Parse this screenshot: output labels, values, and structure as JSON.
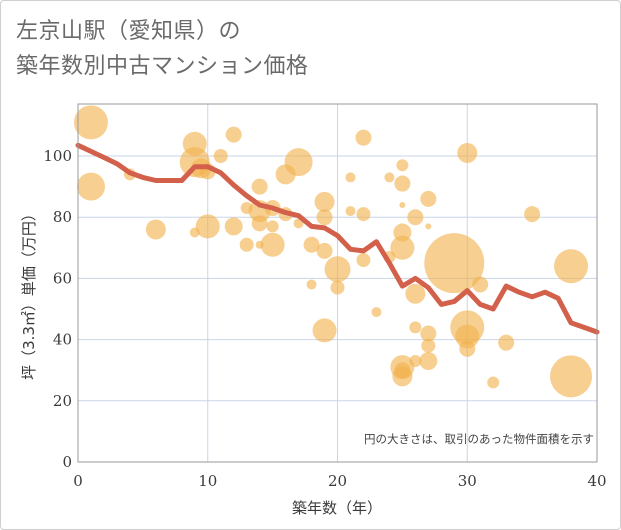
{
  "title_line1": "左京山駅（愛知県）の",
  "title_line2": "築年数別中古マンション価格",
  "note": "円の大きさは、取引のあった物件面積を示す",
  "colors": {
    "bubble": "#f2b24e",
    "line": "#d3604a",
    "grid": "#c8d6e8",
    "plot_border": "#9a9a9a"
  },
  "chart_data": {
    "type": "scatter",
    "xlabel": "築年数（年）",
    "ylabel": "坪（3.3㎡）単価（万円）",
    "xlim": [
      0,
      40
    ],
    "ylim": [
      0,
      117
    ],
    "xticks": [
      "0",
      "10",
      "20",
      "30",
      "40"
    ],
    "yticks": [
      "0",
      "20",
      "40",
      "60",
      "80",
      "100"
    ],
    "grid": true,
    "bubbles": [
      {
        "x": 1,
        "y": 111,
        "s": 17
      },
      {
        "x": 1,
        "y": 90,
        "s": 14
      },
      {
        "x": 4,
        "y": 94,
        "s": 6
      },
      {
        "x": 6,
        "y": 76,
        "s": 10
      },
      {
        "x": 9,
        "y": 104,
        "s": 12
      },
      {
        "x": 9,
        "y": 98,
        "s": 15
      },
      {
        "x": 9.5,
        "y": 96,
        "s": 10
      },
      {
        "x": 10,
        "y": 95,
        "s": 8
      },
      {
        "x": 10,
        "y": 77,
        "s": 12
      },
      {
        "x": 11,
        "y": 100,
        "s": 7
      },
      {
        "x": 9,
        "y": 75,
        "s": 5
      },
      {
        "x": 12,
        "y": 107,
        "s": 8
      },
      {
        "x": 12,
        "y": 77,
        "s": 9
      },
      {
        "x": 13,
        "y": 71,
        "s": 7
      },
      {
        "x": 13,
        "y": 83,
        "s": 6
      },
      {
        "x": 14,
        "y": 90,
        "s": 8
      },
      {
        "x": 14,
        "y": 82,
        "s": 11
      },
      {
        "x": 14,
        "y": 78,
        "s": 8
      },
      {
        "x": 14,
        "y": 71,
        "s": 4
      },
      {
        "x": 15,
        "y": 83,
        "s": 8
      },
      {
        "x": 15,
        "y": 77,
        "s": 6
      },
      {
        "x": 15,
        "y": 71,
        "s": 12
      },
      {
        "x": 16,
        "y": 94,
        "s": 10
      },
      {
        "x": 16,
        "y": 81,
        "s": 7
      },
      {
        "x": 17,
        "y": 98,
        "s": 14
      },
      {
        "x": 17,
        "y": 78,
        "s": 5
      },
      {
        "x": 18,
        "y": 71,
        "s": 8
      },
      {
        "x": 18,
        "y": 58,
        "s": 5
      },
      {
        "x": 19,
        "y": 85,
        "s": 10
      },
      {
        "x": 19,
        "y": 80,
        "s": 8
      },
      {
        "x": 19,
        "y": 69,
        "s": 8
      },
      {
        "x": 19,
        "y": 43,
        "s": 12
      },
      {
        "x": 20,
        "y": 63,
        "s": 13
      },
      {
        "x": 20,
        "y": 57,
        "s": 7
      },
      {
        "x": 21,
        "y": 93,
        "s": 5
      },
      {
        "x": 21,
        "y": 82,
        "s": 5
      },
      {
        "x": 22,
        "y": 106,
        "s": 8
      },
      {
        "x": 22,
        "y": 81,
        "s": 7
      },
      {
        "x": 22,
        "y": 66,
        "s": 7
      },
      {
        "x": 23,
        "y": 49,
        "s": 5
      },
      {
        "x": 24,
        "y": 93,
        "s": 5
      },
      {
        "x": 24,
        "y": 67,
        "s": 6
      },
      {
        "x": 25,
        "y": 97,
        "s": 6
      },
      {
        "x": 25,
        "y": 91,
        "s": 8
      },
      {
        "x": 25,
        "y": 84,
        "s": 3
      },
      {
        "x": 25,
        "y": 75,
        "s": 9
      },
      {
        "x": 25,
        "y": 70,
        "s": 12
      },
      {
        "x": 25,
        "y": 31,
        "s": 12
      },
      {
        "x": 25,
        "y": 28,
        "s": 10
      },
      {
        "x": 25,
        "y": 30,
        "s": 8
      },
      {
        "x": 26,
        "y": 80,
        "s": 8
      },
      {
        "x": 26,
        "y": 55,
        "s": 10
      },
      {
        "x": 26,
        "y": 44,
        "s": 6
      },
      {
        "x": 26,
        "y": 33,
        "s": 6
      },
      {
        "x": 27,
        "y": 86,
        "s": 8
      },
      {
        "x": 27,
        "y": 77,
        "s": 3
      },
      {
        "x": 27,
        "y": 42,
        "s": 8
      },
      {
        "x": 27,
        "y": 38,
        "s": 7
      },
      {
        "x": 27,
        "y": 33,
        "s": 9
      },
      {
        "x": 29,
        "y": 65,
        "s": 30
      },
      {
        "x": 30,
        "y": 101,
        "s": 10
      },
      {
        "x": 30,
        "y": 44,
        "s": 17
      },
      {
        "x": 30,
        "y": 41,
        "s": 12
      },
      {
        "x": 30,
        "y": 37,
        "s": 8
      },
      {
        "x": 31,
        "y": 58,
        "s": 8
      },
      {
        "x": 32,
        "y": 26,
        "s": 6
      },
      {
        "x": 33,
        "y": 39,
        "s": 8
      },
      {
        "x": 35,
        "y": 81,
        "s": 8
      },
      {
        "x": 38,
        "y": 64,
        "s": 17
      },
      {
        "x": 38,
        "y": 28,
        "s": 21
      }
    ],
    "trend": {
      "x": [
        0,
        1,
        2,
        3,
        4,
        5,
        6,
        7,
        8,
        9,
        10,
        11,
        12,
        13,
        14,
        15,
        16,
        17,
        18,
        19,
        20,
        21,
        22,
        23,
        24,
        25,
        26,
        27,
        28,
        29,
        30,
        31,
        32,
        33,
        34,
        35,
        36,
        37,
        38,
        39,
        40
      ],
      "y": [
        103.5,
        101.5,
        99.5,
        97.5,
        94.5,
        93.0,
        92.0,
        92.0,
        92.0,
        96.5,
        96.5,
        94.5,
        90.5,
        87.0,
        84.0,
        83.0,
        81.5,
        80.5,
        77.0,
        76.5,
        74.0,
        69.5,
        69.0,
        72.0,
        65.0,
        57.5,
        60.0,
        57.0,
        51.5,
        52.5,
        56.0,
        51.5,
        50.0,
        57.5,
        55.5,
        54.0,
        55.5,
        53.5,
        45.5,
        44.0,
        42.5
      ]
    }
  }
}
